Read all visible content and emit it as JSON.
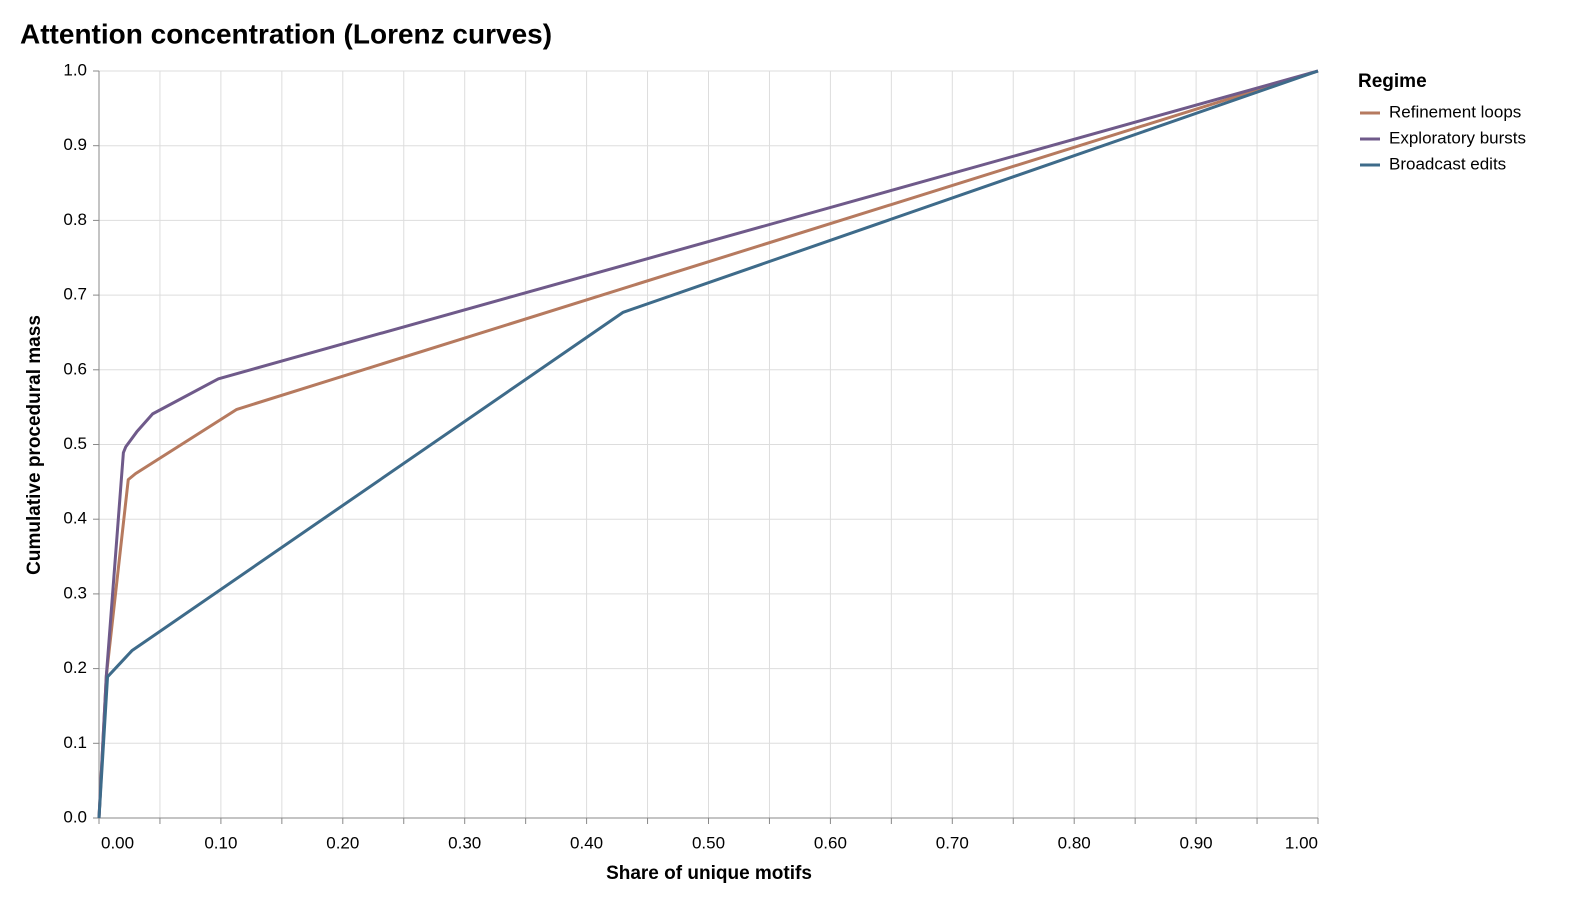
{
  "chart_data": {
    "type": "line",
    "title": "Attention concentration (Lorenz curves)",
    "x_label": "Share of unique motifs",
    "y_label": "Cumulative procedural mass",
    "legend_title": "Regime",
    "legend_position": "right",
    "grid": true,
    "xlim": [
      0,
      1
    ],
    "ylim": [
      0,
      1
    ],
    "xticks": [
      {
        "value": 0,
        "label": "0.00"
      },
      {
        "value": 0.1,
        "label": "0.10"
      },
      {
        "value": 0.2,
        "label": "0.20"
      },
      {
        "value": 0.3,
        "label": "0.30"
      },
      {
        "value": 0.4,
        "label": "0.40"
      },
      {
        "value": 0.5,
        "label": "0.50"
      },
      {
        "value": 0.6,
        "label": "0.60"
      },
      {
        "value": 0.7,
        "label": "0.70"
      },
      {
        "value": 0.8,
        "label": "0.80"
      },
      {
        "value": 0.9,
        "label": "0.90"
      },
      {
        "value": 1,
        "label": "1.00"
      }
    ],
    "xminor_ticks": [
      0.05,
      0.15,
      0.25,
      0.35,
      0.45,
      0.55,
      0.65,
      0.75,
      0.85,
      0.95
    ],
    "yticks": [
      {
        "value": 0,
        "label": "0.0"
      },
      0.1,
      0.2,
      0.3,
      0.4,
      0.5,
      0.6,
      0.7,
      0.8,
      0.9,
      {
        "value": 1,
        "label": "1.0"
      }
    ],
    "series": [
      {
        "name": "Refinement loops",
        "color": "#b67a5f",
        "x": [
          0,
          0.006,
          0.024,
          0.03,
          0.113,
          1
        ],
        "values": [
          0,
          0.19,
          0.453,
          0.461,
          0.547,
          1
        ]
      },
      {
        "name": "Exploratory bursts",
        "color": "#6f5a8a",
        "x": [
          0,
          0.006,
          0.02,
          0.022,
          0.031,
          0.044,
          0.098,
          1
        ],
        "values": [
          0,
          0.19,
          0.489,
          0.497,
          0.517,
          0.541,
          0.588,
          1
        ]
      },
      {
        "name": "Broadcast edits",
        "color": "#3e6b8a",
        "x": [
          0,
          0.007,
          0.027,
          0.43,
          1
        ],
        "values": [
          0,
          0.189,
          0.224,
          0.677,
          1
        ]
      }
    ]
  }
}
